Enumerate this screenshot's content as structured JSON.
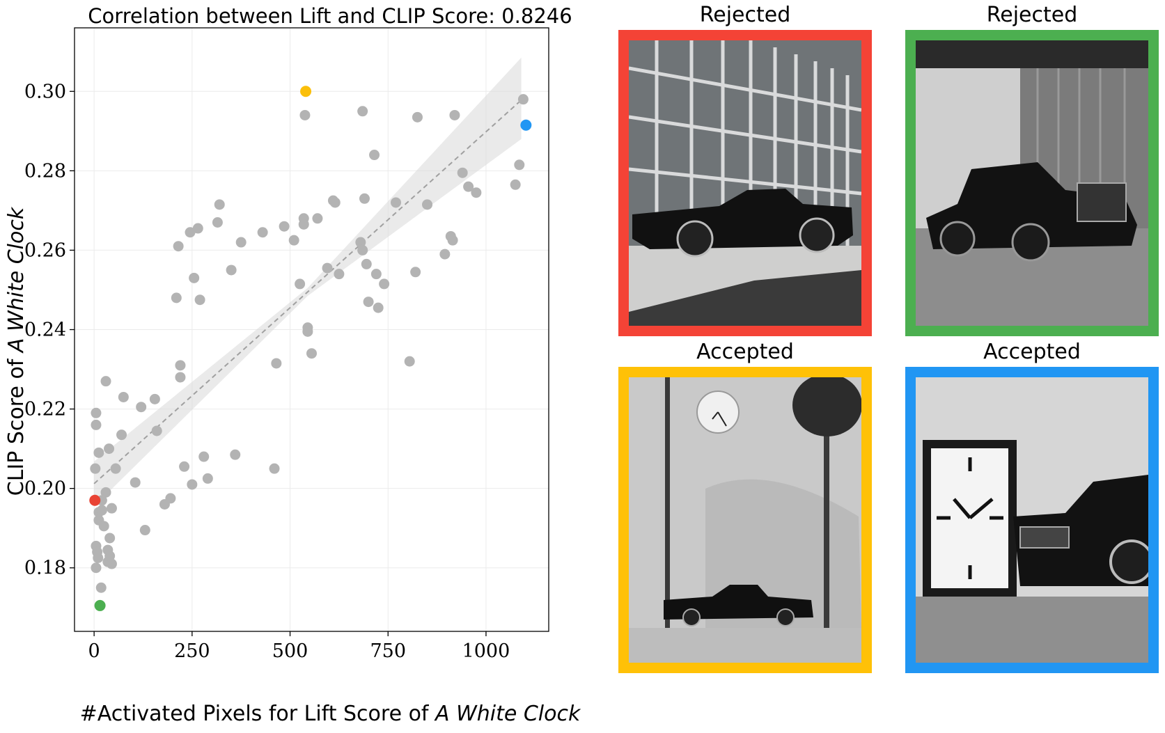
{
  "chart_data": {
    "type": "scatter",
    "title": "Correlation between Lift and CLIP Score: 0.8246",
    "xlabel_prefix": "#Activated Pixels for Lift Score of ",
    "xlabel_emph": "A White Clock",
    "ylabel_prefix": "CLIP Score of ",
    "ylabel_emph": "A White Clock",
    "xlim": [
      -50,
      1160
    ],
    "ylim": [
      0.164,
      0.316
    ],
    "xticks": [
      0,
      250,
      500,
      750,
      1000
    ],
    "xtick_labels": [
      "0",
      "250",
      "500",
      "750",
      "1000"
    ],
    "yticks": [
      0.18,
      0.2,
      0.22,
      0.24,
      0.26,
      0.28,
      0.3
    ],
    "ytick_labels": [
      "0.18",
      "0.20",
      "0.22",
      "0.24",
      "0.26",
      "0.28",
      "0.30"
    ],
    "grid": true,
    "regression": {
      "x": [
        0,
        1090
      ],
      "y": [
        0.2012,
        0.2978
      ]
    },
    "confidence_band": {
      "x": [
        0,
        545,
        1090
      ],
      "lower": [
        0.1955,
        0.2485,
        0.288
      ],
      "upper": [
        0.2068,
        0.2505,
        0.3085
      ]
    },
    "points_color": "#b3b3b3",
    "points": [
      {
        "x": 5,
        "y": 0.219
      },
      {
        "x": 5,
        "y": 0.216
      },
      {
        "x": 3,
        "y": 0.205
      },
      {
        "x": 30,
        "y": 0.227
      },
      {
        "x": 12,
        "y": 0.209
      },
      {
        "x": 38,
        "y": 0.21
      },
      {
        "x": 55,
        "y": 0.205
      },
      {
        "x": 70,
        "y": 0.2135
      },
      {
        "x": 75,
        "y": 0.223
      },
      {
        "x": 30,
        "y": 0.199
      },
      {
        "x": 20,
        "y": 0.197
      },
      {
        "x": 12,
        "y": 0.194
      },
      {
        "x": 20,
        "y": 0.1945
      },
      {
        "x": 45,
        "y": 0.195
      },
      {
        "x": 12,
        "y": 0.192
      },
      {
        "x": 25,
        "y": 0.1905
      },
      {
        "x": 40,
        "y": 0.1875
      },
      {
        "x": 5,
        "y": 0.1855
      },
      {
        "x": 8,
        "y": 0.184
      },
      {
        "x": 35,
        "y": 0.1845
      },
      {
        "x": 10,
        "y": 0.1825
      },
      {
        "x": 40,
        "y": 0.183
      },
      {
        "x": 35,
        "y": 0.1815
      },
      {
        "x": 45,
        "y": 0.181
      },
      {
        "x": 5,
        "y": 0.18
      },
      {
        "x": 18,
        "y": 0.175
      },
      {
        "x": 120,
        "y": 0.2205
      },
      {
        "x": 155,
        "y": 0.2225
      },
      {
        "x": 160,
        "y": 0.2145
      },
      {
        "x": 105,
        "y": 0.2015
      },
      {
        "x": 130,
        "y": 0.1895
      },
      {
        "x": 180,
        "y": 0.196
      },
      {
        "x": 195,
        "y": 0.1975
      },
      {
        "x": 220,
        "y": 0.231
      },
      {
        "x": 220,
        "y": 0.228
      },
      {
        "x": 230,
        "y": 0.2055
      },
      {
        "x": 250,
        "y": 0.201
      },
      {
        "x": 210,
        "y": 0.248
      },
      {
        "x": 215,
        "y": 0.261
      },
      {
        "x": 245,
        "y": 0.2645
      },
      {
        "x": 265,
        "y": 0.2655
      },
      {
        "x": 255,
        "y": 0.253
      },
      {
        "x": 270,
        "y": 0.2475
      },
      {
        "x": 280,
        "y": 0.208
      },
      {
        "x": 290,
        "y": 0.2025
      },
      {
        "x": 315,
        "y": 0.267
      },
      {
        "x": 320,
        "y": 0.2715
      },
      {
        "x": 350,
        "y": 0.255
      },
      {
        "x": 360,
        "y": 0.2085
      },
      {
        "x": 375,
        "y": 0.262
      },
      {
        "x": 430,
        "y": 0.2645
      },
      {
        "x": 460,
        "y": 0.205
      },
      {
        "x": 465,
        "y": 0.2315
      },
      {
        "x": 485,
        "y": 0.266
      },
      {
        "x": 510,
        "y": 0.2625
      },
      {
        "x": 525,
        "y": 0.2515
      },
      {
        "x": 535,
        "y": 0.268
      },
      {
        "x": 535,
        "y": 0.2665
      },
      {
        "x": 538,
        "y": 0.294
      },
      {
        "x": 545,
        "y": 0.2405
      },
      {
        "x": 545,
        "y": 0.2395
      },
      {
        "x": 555,
        "y": 0.234
      },
      {
        "x": 570,
        "y": 0.268
      },
      {
        "x": 595,
        "y": 0.2555
      },
      {
        "x": 610,
        "y": 0.2725
      },
      {
        "x": 615,
        "y": 0.272
      },
      {
        "x": 625,
        "y": 0.254
      },
      {
        "x": 680,
        "y": 0.262
      },
      {
        "x": 685,
        "y": 0.26
      },
      {
        "x": 685,
        "y": 0.295
      },
      {
        "x": 690,
        "y": 0.273
      },
      {
        "x": 695,
        "y": 0.2565
      },
      {
        "x": 700,
        "y": 0.247
      },
      {
        "x": 715,
        "y": 0.284
      },
      {
        "x": 720,
        "y": 0.254
      },
      {
        "x": 725,
        "y": 0.2455
      },
      {
        "x": 740,
        "y": 0.2515
      },
      {
        "x": 770,
        "y": 0.272
      },
      {
        "x": 805,
        "y": 0.232
      },
      {
        "x": 820,
        "y": 0.2545
      },
      {
        "x": 825,
        "y": 0.2935
      },
      {
        "x": 850,
        "y": 0.2715
      },
      {
        "x": 895,
        "y": 0.259
      },
      {
        "x": 910,
        "y": 0.2635
      },
      {
        "x": 915,
        "y": 0.2625
      },
      {
        "x": 920,
        "y": 0.294
      },
      {
        "x": 940,
        "y": 0.2795
      },
      {
        "x": 955,
        "y": 0.276
      },
      {
        "x": 975,
        "y": 0.2745
      },
      {
        "x": 1075,
        "y": 0.2765
      },
      {
        "x": 1085,
        "y": 0.2815
      },
      {
        "x": 1095,
        "y": 0.298
      }
    ],
    "highlighted_points": [
      {
        "x": 540,
        "y": 0.3,
        "color": "#fbbf0a"
      },
      {
        "x": 1102,
        "y": 0.2915,
        "color": "#2196f3"
      },
      {
        "x": 2,
        "y": 0.197,
        "color": "#e94334"
      },
      {
        "x": 15,
        "y": 0.1705,
        "color": "#4caf50"
      }
    ]
  },
  "panels": [
    {
      "title": "Rejected",
      "border_color": "#f44336"
    },
    {
      "title": "Rejected",
      "border_color": "#4caf50"
    },
    {
      "title": "Accepted",
      "border_color": "#ffc107"
    },
    {
      "title": "Accepted",
      "border_color": "#2196f3"
    }
  ]
}
